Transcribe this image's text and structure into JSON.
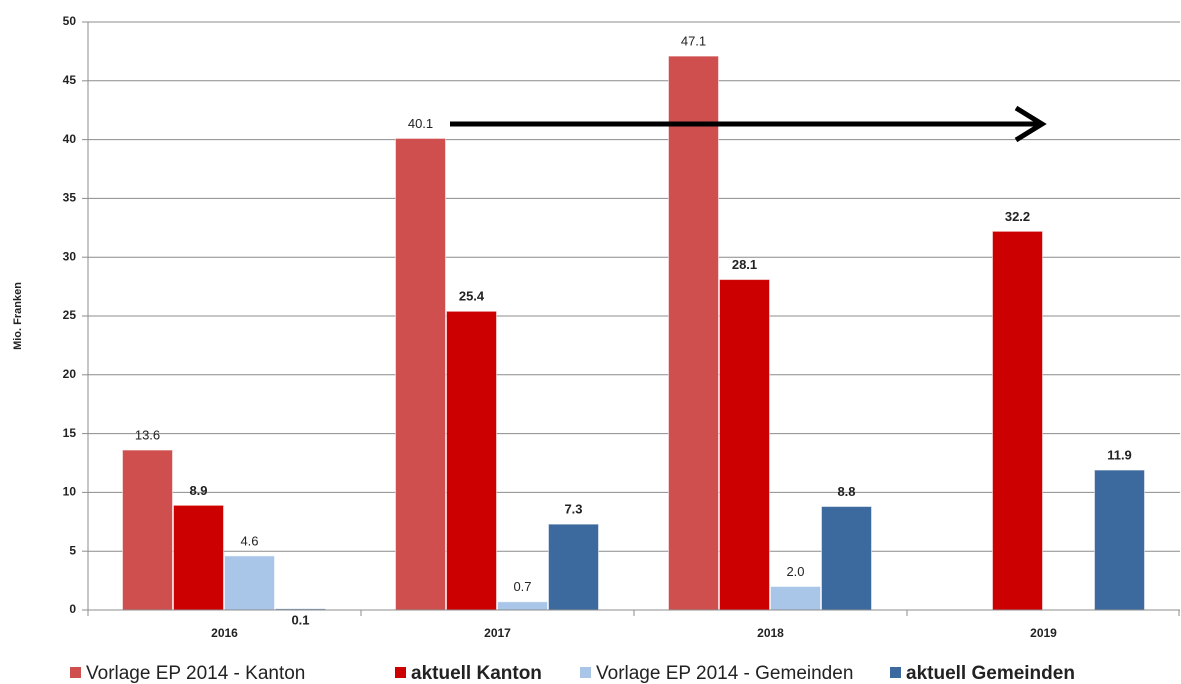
{
  "chart_data": {
    "type": "bar",
    "y_axis_label": "Mio. Franken",
    "categories": [
      "2016",
      "2017",
      "2018",
      "2019"
    ],
    "series": [
      {
        "name": "Vorlage EP 2014 - Kanton",
        "color": "#cf4f4f",
        "values": [
          13.6,
          40.1,
          47.1,
          null
        ],
        "value_labels": [
          "13.6",
          "40.1",
          "47.1",
          null
        ]
      },
      {
        "name": "aktuell Kanton",
        "color": "#cc0000",
        "values": [
          8.9,
          25.4,
          28.1,
          32.2
        ],
        "value_labels": [
          "8.9",
          "25.4",
          "28.1",
          "32.2"
        ]
      },
      {
        "name": "Vorlage EP 2014 - Gemeinden",
        "color": "#a9c6e8",
        "values": [
          4.6,
          0.7,
          2.0,
          null
        ],
        "value_labels": [
          "4.6",
          "0.7",
          "2.0",
          null
        ]
      },
      {
        "name": "aktuell Gemeinden",
        "color": "#3d6a9e",
        "values": [
          0.1,
          7.3,
          8.8,
          11.9
        ],
        "value_labels": [
          "0.1",
          "7.3",
          "8.8",
          "11.9"
        ]
      }
    ],
    "ylim": [
      0,
      50
    ],
    "yticks": [
      0,
      5,
      10,
      15,
      20,
      25,
      30,
      35,
      40,
      45,
      50
    ],
    "grid": true
  }
}
